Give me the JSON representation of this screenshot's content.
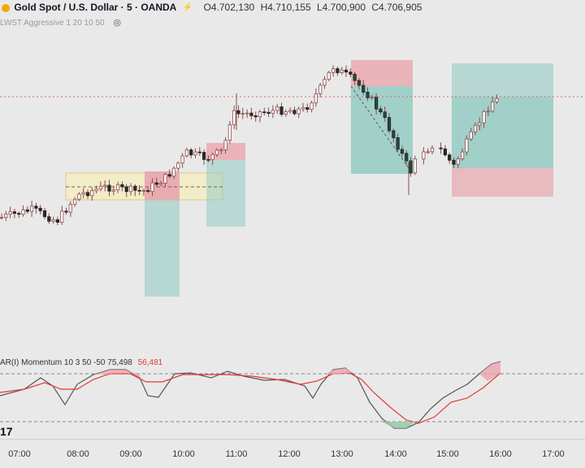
{
  "header": {
    "title": "Gold Spot / U.S. Dollar · 5 · OANDA",
    "open": "O4.702,130",
    "high": "H4.710,155",
    "low": "L4.700,900",
    "close": "C4.706,905",
    "indicator_label": "LWST Aggressive 1 20 10 50",
    "logo_icon": "gold-coin-icon",
    "alert_icon": "lightning-icon",
    "visibility_icon": "eye-icon"
  },
  "oscillator": {
    "label": "AR(I) Momentum 10 3 50 -50",
    "value_main": "75,498",
    "value_signal": "56,481"
  },
  "colors": {
    "background": "#e9e9e9",
    "up_candle": "#ffffff",
    "down_candle": "#2a2a2a",
    "wick": "#8b4a4a",
    "stop_zone": "#e8a5ad",
    "target_zone": "#8ec9bf",
    "range_box": "#f4ecc4",
    "main_line": "#555555",
    "signal_line": "#e53935"
  },
  "chart_data": {
    "type": "candlestick",
    "x_ticks": [
      "07:00",
      "08:00",
      "09:00",
      "10:00",
      "11:00",
      "12:00",
      "13:00",
      "14:00",
      "15:00",
      "16:00",
      "17:00"
    ],
    "price_dotted_line": "current price",
    "oscillator": {
      "levels": [
        50,
        -50
      ],
      "main_value": 75.498,
      "signal_value": 56.481
    }
  }
}
